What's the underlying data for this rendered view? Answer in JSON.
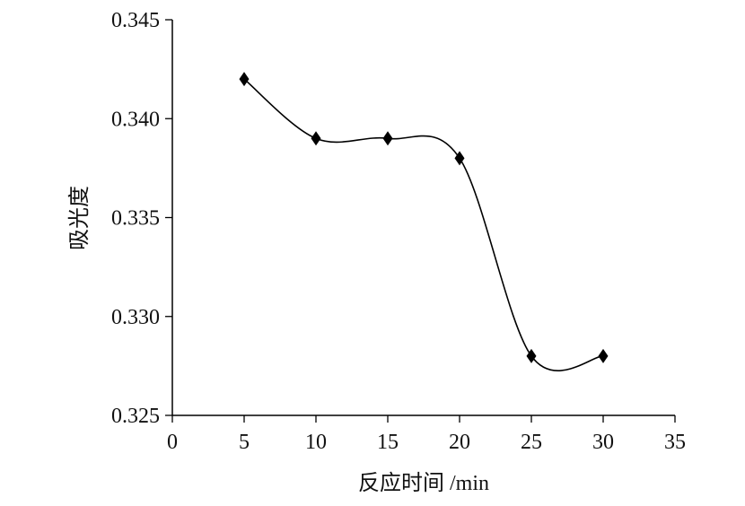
{
  "chart_data": {
    "type": "line",
    "title": "",
    "xlabel": "反应时间 /min",
    "ylabel": "吸光度",
    "x": [
      5,
      10,
      15,
      20,
      25,
      30
    ],
    "series": [
      {
        "values": [
          0.342,
          0.339,
          0.339,
          0.338,
          0.328,
          0.328
        ]
      }
    ],
    "xlim": [
      0,
      35
    ],
    "ylim": [
      0.325,
      0.345
    ],
    "xticks": [
      "0",
      "5",
      "10",
      "15",
      "20",
      "25",
      "30",
      "35"
    ],
    "yticks": [
      "0.325",
      "0.330",
      "0.335",
      "0.340",
      "0.345"
    ],
    "grid": false,
    "smoothed": true,
    "marker": "diamond",
    "colors": {
      "line": "#000000",
      "marker": "#000000"
    }
  }
}
